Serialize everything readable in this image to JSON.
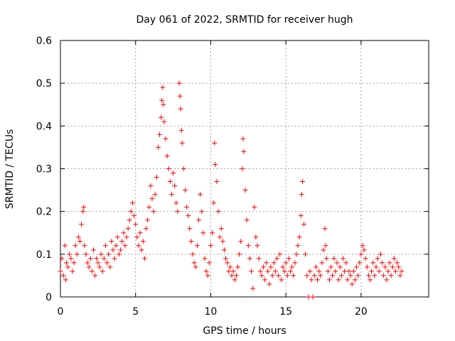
{
  "chart_data": {
    "type": "scatter",
    "title": "Day 061 of 2022, SRMTID for receiver hugh",
    "xlabel": "GPS time / hours",
    "ylabel": "SRMTID / TECUs",
    "xlim": [
      0,
      24.5
    ],
    "ylim": [
      0,
      0.6
    ],
    "x_ticks": [
      0,
      5,
      10,
      15,
      20
    ],
    "y_ticks": [
      0,
      0.1,
      0.2,
      0.3,
      0.4,
      0.5,
      0.6
    ],
    "x_tick_labels": [
      "0",
      "5",
      "10",
      "15",
      "20"
    ],
    "y_tick_labels": [
      "0",
      "0.1",
      "0.2",
      "0.3",
      "0.4",
      "0.5",
      "0.6"
    ],
    "grid": true,
    "marker": "plus",
    "series": [
      {
        "name": "SRMTID",
        "color": "#ff0000",
        "points": [
          [
            0.0,
            0.06
          ],
          [
            0.1,
            0.09
          ],
          [
            0.2,
            0.05
          ],
          [
            0.3,
            0.12
          ],
          [
            0.35,
            0.04
          ],
          [
            0.4,
            0.08
          ],
          [
            0.5,
            0.07
          ],
          [
            0.6,
            0.1
          ],
          [
            0.7,
            0.09
          ],
          [
            0.8,
            0.06
          ],
          [
            0.9,
            0.08
          ],
          [
            1.0,
            0.12
          ],
          [
            1.1,
            0.1
          ],
          [
            1.2,
            0.14
          ],
          [
            1.3,
            0.13
          ],
          [
            1.4,
            0.17
          ],
          [
            1.5,
            0.2
          ],
          [
            1.55,
            0.21
          ],
          [
            1.6,
            0.12
          ],
          [
            1.7,
            0.1
          ],
          [
            1.8,
            0.08
          ],
          [
            1.9,
            0.07
          ],
          [
            2.0,
            0.09
          ],
          [
            2.1,
            0.06
          ],
          [
            2.2,
            0.11
          ],
          [
            2.3,
            0.05
          ],
          [
            2.4,
            0.09
          ],
          [
            2.5,
            0.08
          ],
          [
            2.6,
            0.07
          ],
          [
            2.7,
            0.1
          ],
          [
            2.8,
            0.06
          ],
          [
            2.9,
            0.09
          ],
          [
            3.0,
            0.12
          ],
          [
            3.1,
            0.08
          ],
          [
            3.2,
            0.1
          ],
          [
            3.3,
            0.07
          ],
          [
            3.4,
            0.13
          ],
          [
            3.5,
            0.11
          ],
          [
            3.6,
            0.09
          ],
          [
            3.7,
            0.12
          ],
          [
            3.8,
            0.14
          ],
          [
            3.9,
            0.1
          ],
          [
            4.0,
            0.11
          ],
          [
            4.1,
            0.13
          ],
          [
            4.2,
            0.15
          ],
          [
            4.3,
            0.12
          ],
          [
            4.4,
            0.14
          ],
          [
            4.5,
            0.16
          ],
          [
            4.6,
            0.18
          ],
          [
            4.7,
            0.2
          ],
          [
            4.8,
            0.22
          ],
          [
            4.9,
            0.19
          ],
          [
            5.0,
            0.17
          ],
          [
            5.1,
            0.14
          ],
          [
            5.2,
            0.12
          ],
          [
            5.3,
            0.15
          ],
          [
            5.4,
            0.11
          ],
          [
            5.5,
            0.13
          ],
          [
            5.6,
            0.09
          ],
          [
            5.7,
            0.16
          ],
          [
            5.8,
            0.18
          ],
          [
            5.9,
            0.21
          ],
          [
            6.0,
            0.26
          ],
          [
            6.1,
            0.23
          ],
          [
            6.2,
            0.2
          ],
          [
            6.3,
            0.24
          ],
          [
            6.4,
            0.28
          ],
          [
            6.5,
            0.35
          ],
          [
            6.6,
            0.38
          ],
          [
            6.7,
            0.42
          ],
          [
            6.75,
            0.46
          ],
          [
            6.8,
            0.49
          ],
          [
            6.85,
            0.45
          ],
          [
            6.9,
            0.41
          ],
          [
            7.0,
            0.37
          ],
          [
            7.1,
            0.33
          ],
          [
            7.2,
            0.3
          ],
          [
            7.3,
            0.27
          ],
          [
            7.4,
            0.24
          ],
          [
            7.5,
            0.29
          ],
          [
            7.6,
            0.26
          ],
          [
            7.7,
            0.22
          ],
          [
            7.8,
            0.2
          ],
          [
            7.9,
            0.5
          ],
          [
            7.95,
            0.47
          ],
          [
            8.0,
            0.44
          ],
          [
            8.05,
            0.39
          ],
          [
            8.1,
            0.36
          ],
          [
            8.2,
            0.3
          ],
          [
            8.3,
            0.25
          ],
          [
            8.4,
            0.21
          ],
          [
            8.5,
            0.19
          ],
          [
            8.6,
            0.16
          ],
          [
            8.7,
            0.13
          ],
          [
            8.8,
            0.1
          ],
          [
            8.9,
            0.08
          ],
          [
            9.0,
            0.07
          ],
          [
            9.1,
            0.12
          ],
          [
            9.2,
            0.18
          ],
          [
            9.3,
            0.24
          ],
          [
            9.4,
            0.2
          ],
          [
            9.5,
            0.15
          ],
          [
            9.6,
            0.09
          ],
          [
            9.7,
            0.06
          ],
          [
            9.8,
            0.05
          ],
          [
            9.9,
            0.08
          ],
          [
            10.0,
            0.12
          ],
          [
            10.1,
            0.15
          ],
          [
            10.2,
            0.22
          ],
          [
            10.25,
            0.36
          ],
          [
            10.3,
            0.31
          ],
          [
            10.4,
            0.27
          ],
          [
            10.5,
            0.2
          ],
          [
            10.6,
            0.14
          ],
          [
            10.7,
            0.16
          ],
          [
            10.8,
            0.13
          ],
          [
            10.9,
            0.11
          ],
          [
            11.0,
            0.09
          ],
          [
            11.1,
            0.08
          ],
          [
            11.2,
            0.06
          ],
          [
            11.3,
            0.07
          ],
          [
            11.4,
            0.05
          ],
          [
            11.5,
            0.06
          ],
          [
            11.6,
            0.04
          ],
          [
            11.7,
            0.05
          ],
          [
            11.8,
            0.07
          ],
          [
            11.9,
            0.1
          ],
          [
            12.0,
            0.13
          ],
          [
            12.1,
            0.3
          ],
          [
            12.15,
            0.37
          ],
          [
            12.2,
            0.34
          ],
          [
            12.3,
            0.25
          ],
          [
            12.4,
            0.18
          ],
          [
            12.5,
            0.12
          ],
          [
            12.6,
            0.09
          ],
          [
            12.7,
            0.06
          ],
          [
            12.8,
            0.02
          ],
          [
            12.9,
            0.21
          ],
          [
            13.0,
            0.14
          ],
          [
            13.1,
            0.12
          ],
          [
            13.2,
            0.09
          ],
          [
            13.3,
            0.06
          ],
          [
            13.4,
            0.05
          ],
          [
            13.5,
            0.07
          ],
          [
            13.6,
            0.04
          ],
          [
            13.7,
            0.08
          ],
          [
            13.8,
            0.06
          ],
          [
            13.9,
            0.03
          ],
          [
            14.0,
            0.07
          ],
          [
            14.1,
            0.05
          ],
          [
            14.2,
            0.08
          ],
          [
            14.3,
            0.06
          ],
          [
            14.4,
            0.09
          ],
          [
            14.5,
            0.05
          ],
          [
            14.6,
            0.1
          ],
          [
            14.7,
            0.04
          ],
          [
            14.8,
            0.07
          ],
          [
            14.9,
            0.06
          ],
          [
            15.0,
            0.08
          ],
          [
            15.1,
            0.05
          ],
          [
            15.2,
            0.09
          ],
          [
            15.3,
            0.06
          ],
          [
            15.4,
            0.07
          ],
          [
            15.5,
            0.05
          ],
          [
            15.6,
            0.08
          ],
          [
            15.7,
            0.1
          ],
          [
            15.8,
            0.12
          ],
          [
            15.9,
            0.14
          ],
          [
            16.0,
            0.19
          ],
          [
            16.05,
            0.24
          ],
          [
            16.1,
            0.27
          ],
          [
            16.2,
            0.17
          ],
          [
            16.3,
            0.1
          ],
          [
            16.4,
            0.05
          ],
          [
            16.5,
            0.0
          ],
          [
            16.6,
            0.06
          ],
          [
            16.7,
            0.04
          ],
          [
            16.8,
            0.0
          ],
          [
            16.9,
            0.05
          ],
          [
            17.0,
            0.07
          ],
          [
            17.1,
            0.04
          ],
          [
            17.2,
            0.06
          ],
          [
            17.3,
            0.05
          ],
          [
            17.4,
            0.08
          ],
          [
            17.5,
            0.11
          ],
          [
            17.6,
            0.16
          ],
          [
            17.65,
            0.12
          ],
          [
            17.7,
            0.09
          ],
          [
            17.8,
            0.06
          ],
          [
            17.9,
            0.04
          ],
          [
            18.0,
            0.07
          ],
          [
            18.1,
            0.05
          ],
          [
            18.2,
            0.09
          ],
          [
            18.3,
            0.06
          ],
          [
            18.4,
            0.08
          ],
          [
            18.5,
            0.04
          ],
          [
            18.6,
            0.07
          ],
          [
            18.7,
            0.05
          ],
          [
            18.8,
            0.09
          ],
          [
            18.9,
            0.06
          ],
          [
            19.0,
            0.08
          ],
          [
            19.1,
            0.04
          ],
          [
            19.2,
            0.06
          ],
          [
            19.3,
            0.05
          ],
          [
            19.4,
            0.03
          ],
          [
            19.5,
            0.06
          ],
          [
            19.6,
            0.04
          ],
          [
            19.7,
            0.07
          ],
          [
            19.8,
            0.05
          ],
          [
            19.9,
            0.08
          ],
          [
            20.0,
            0.1
          ],
          [
            20.1,
            0.12
          ],
          [
            20.2,
            0.11
          ],
          [
            20.3,
            0.09
          ],
          [
            20.4,
            0.07
          ],
          [
            20.5,
            0.05
          ],
          [
            20.6,
            0.04
          ],
          [
            20.7,
            0.06
          ],
          [
            20.8,
            0.08
          ],
          [
            20.9,
            0.05
          ],
          [
            21.0,
            0.07
          ],
          [
            21.1,
            0.09
          ],
          [
            21.2,
            0.06
          ],
          [
            21.3,
            0.1
          ],
          [
            21.4,
            0.08
          ],
          [
            21.5,
            0.05
          ],
          [
            21.6,
            0.07
          ],
          [
            21.7,
            0.04
          ],
          [
            21.8,
            0.06
          ],
          [
            21.9,
            0.08
          ],
          [
            22.0,
            0.05
          ],
          [
            22.1,
            0.07
          ],
          [
            22.2,
            0.09
          ],
          [
            22.3,
            0.06
          ],
          [
            22.4,
            0.08
          ],
          [
            22.5,
            0.07
          ],
          [
            22.6,
            0.05
          ],
          [
            22.7,
            0.06
          ]
        ]
      }
    ]
  }
}
